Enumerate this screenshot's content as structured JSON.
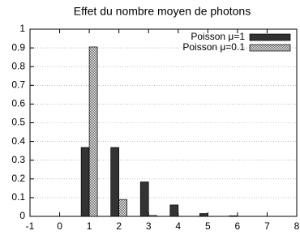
{
  "chart_data": {
    "type": "bar",
    "title": "Effet du nombre moyen de photons",
    "x": [
      1,
      2,
      3,
      4,
      5,
      6,
      7
    ],
    "series": [
      {
        "name": "Poisson μ=1",
        "color": "#333333",
        "values": [
          0.368,
          0.368,
          0.184,
          0.061,
          0.015,
          0.003,
          0.0005
        ]
      },
      {
        "name": "Poisson μ=0.1",
        "color": "checker",
        "values": [
          0.905,
          0.09,
          0.005,
          0.0002,
          0,
          0,
          0
        ]
      }
    ],
    "xlim": [
      -1,
      8
    ],
    "xticks": [
      -1,
      0,
      1,
      2,
      3,
      4,
      5,
      6,
      7,
      8
    ],
    "ylim": [
      0,
      1
    ],
    "yticks": [
      0,
      0.1,
      0.2,
      0.3,
      0.4,
      0.5,
      0.6,
      0.7,
      0.8,
      0.9,
      1
    ],
    "grid": true,
    "legend": "top-right"
  }
}
